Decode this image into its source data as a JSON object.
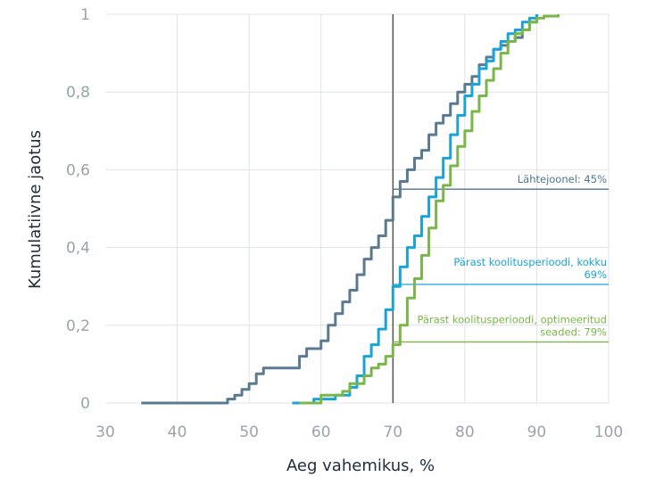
{
  "chart_data": {
    "type": "line",
    "title": "",
    "xlabel": "Aeg vahemikus, %",
    "ylabel": "Kumulatiivne jaotus",
    "xlim": [
      30,
      100
    ],
    "ylim": [
      0,
      1
    ],
    "x_ticks": [
      30,
      40,
      50,
      60,
      70,
      80,
      90,
      100
    ],
    "y_ticks": [
      0,
      0.2,
      0.4,
      0.6,
      0.8,
      1
    ],
    "x_tick_labels": [
      "30",
      "40",
      "50",
      "60",
      "70",
      "80",
      "90",
      "100"
    ],
    "y_tick_labels": [
      "0",
      "0,2",
      "0,4",
      "0,6",
      "0,8",
      "1"
    ],
    "grid": true,
    "reference_line_x": 70,
    "series": [
      {
        "color": "#5a7a92",
        "x": [
          35,
          47,
          48,
          49,
          50,
          51,
          52,
          53,
          55,
          57,
          58,
          60,
          61,
          62,
          63,
          64,
          65,
          66,
          67,
          68,
          69,
          70,
          71,
          72,
          73,
          74,
          75,
          76,
          77,
          78,
          79,
          80,
          81,
          82,
          83,
          84,
          85,
          86,
          87,
          88,
          89,
          90
        ],
        "y": [
          0,
          0.01,
          0.02,
          0.035,
          0.05,
          0.075,
          0.09,
          0.09,
          0.09,
          0.12,
          0.14,
          0.16,
          0.2,
          0.23,
          0.26,
          0.29,
          0.33,
          0.37,
          0.4,
          0.43,
          0.47,
          0.53,
          0.57,
          0.6,
          0.63,
          0.65,
          0.69,
          0.72,
          0.74,
          0.77,
          0.8,
          0.82,
          0.84,
          0.87,
          0.89,
          0.91,
          0.92,
          0.93,
          0.94,
          0.96,
          0.98,
          1.0
        ]
      },
      {
        "color": "#1aa3d9",
        "x": [
          56,
          59,
          62,
          64,
          65,
          66,
          67,
          68,
          69,
          70,
          71,
          72,
          73,
          74,
          75,
          76,
          77,
          78,
          79,
          80,
          81,
          82,
          83,
          84,
          85,
          86,
          87,
          88,
          89,
          90
        ],
        "y": [
          0,
          0.01,
          0.02,
          0.04,
          0.07,
          0.12,
          0.15,
          0.19,
          0.24,
          0.3,
          0.35,
          0.4,
          0.43,
          0.48,
          0.53,
          0.58,
          0.63,
          0.69,
          0.74,
          0.79,
          0.82,
          0.86,
          0.88,
          0.91,
          0.93,
          0.95,
          0.96,
          0.98,
          0.99,
          1.0
        ]
      },
      {
        "color": "#7ab648",
        "x": [
          57,
          60,
          63,
          64,
          66,
          67,
          68,
          69,
          70,
          71,
          72,
          73,
          74,
          75,
          76,
          77,
          78,
          79,
          80,
          81,
          82,
          83,
          84,
          85,
          86,
          87,
          88,
          89,
          90,
          91,
          93
        ],
        "y": [
          0,
          0.02,
          0.03,
          0.05,
          0.07,
          0.09,
          0.1,
          0.12,
          0.15,
          0.2,
          0.27,
          0.32,
          0.38,
          0.45,
          0.52,
          0.56,
          0.61,
          0.66,
          0.7,
          0.75,
          0.79,
          0.83,
          0.86,
          0.9,
          0.93,
          0.95,
          0.96,
          0.98,
          0.99,
          0.995,
          1.0
        ]
      }
    ],
    "annotations": [
      {
        "text_lines": [
          "Lähtejoonel: 45%"
        ],
        "color": "#4f7590",
        "y": 0.55
      },
      {
        "text_lines": [
          "Pärast koolitusperioodi, kokku",
          "69%"
        ],
        "color": "#1aa3d9",
        "y": 0.305
      },
      {
        "text_lines": [
          "Pärast koolitusperioodi, optimeeritud",
          "seaded: 79%"
        ],
        "color": "#7ab648",
        "y": 0.157
      }
    ]
  }
}
